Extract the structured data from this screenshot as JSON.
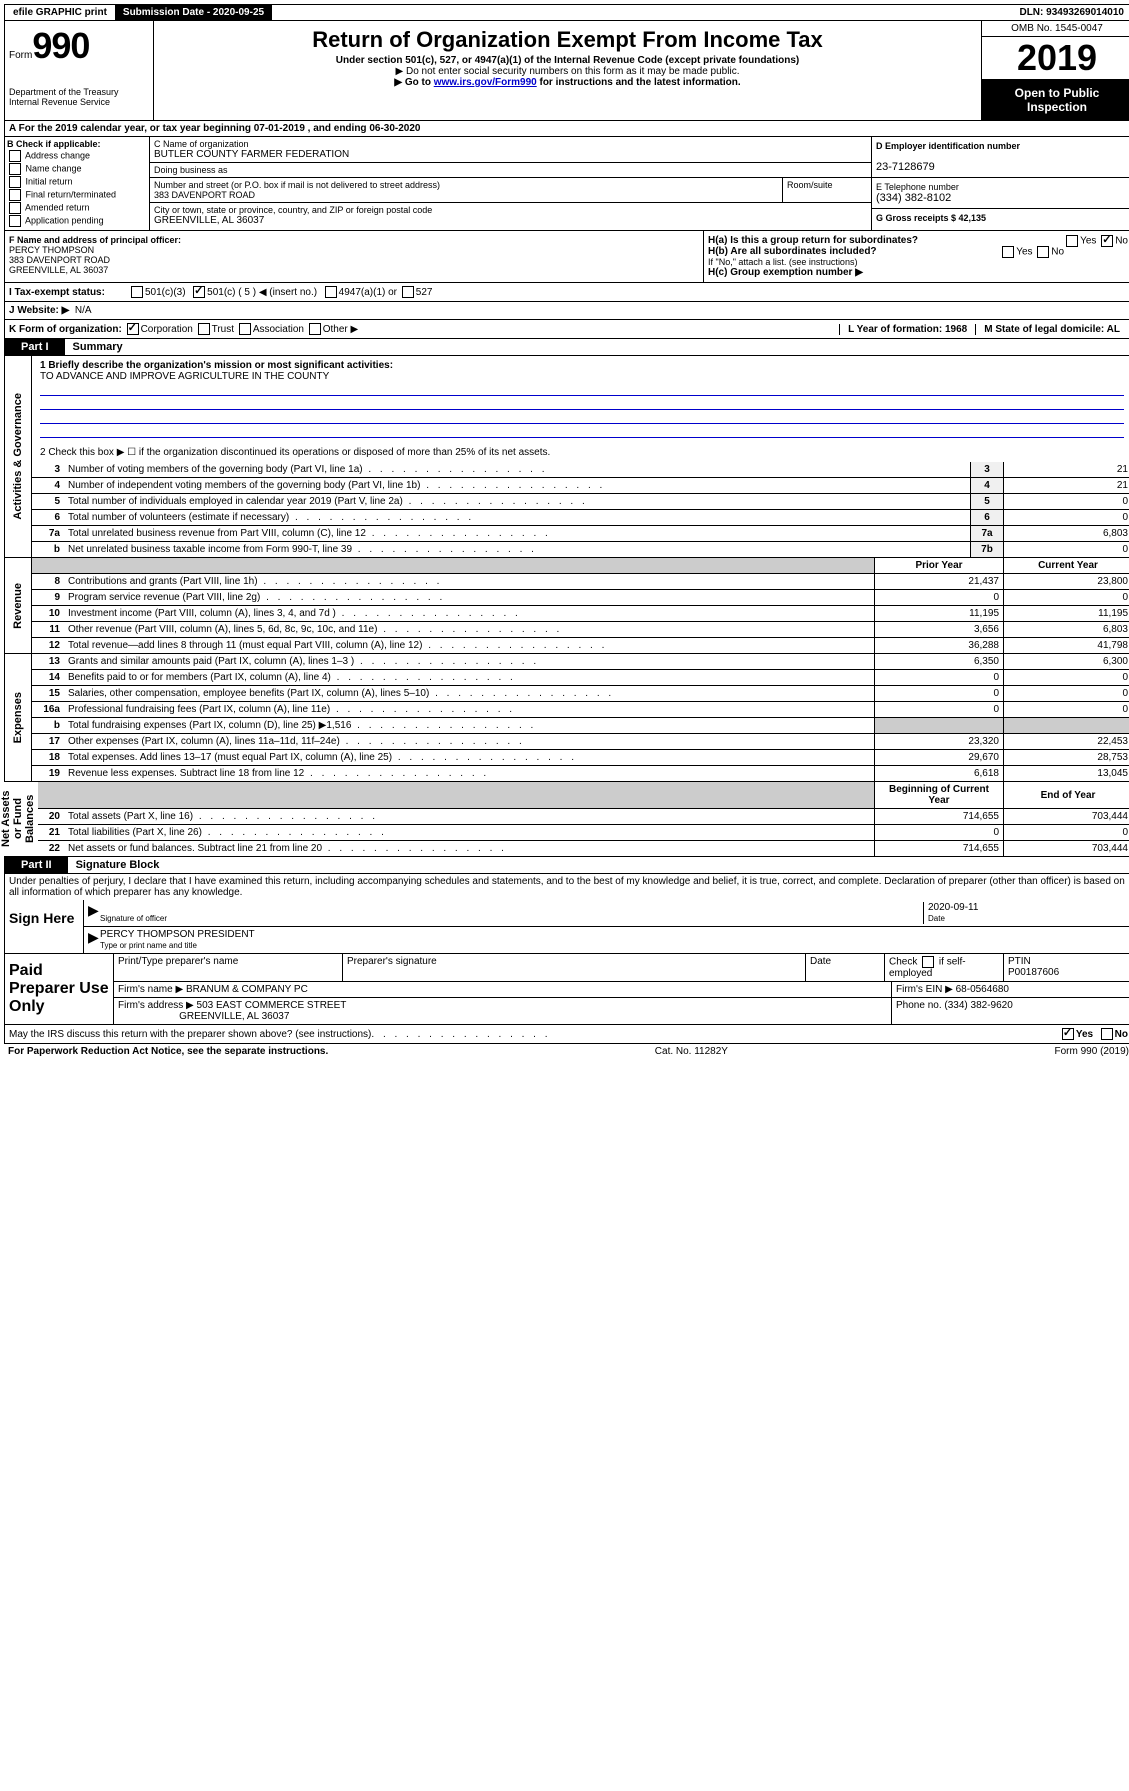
{
  "topbar": {
    "efile": "efile GRAPHIC print",
    "sub_label": "Submission Date - 2020-09-25",
    "dln": "DLN: 93493269014010"
  },
  "header": {
    "form": "Form",
    "form_num": "990",
    "title": "Return of Organization Exempt From Income Tax",
    "subtitle": "Under section 501(c), 527, or 4947(a)(1) of the Internal Revenue Code (except private foundations)",
    "note1": "▶ Do not enter social security numbers on this form as it may be made public.",
    "note2_pre": "▶ Go to ",
    "note2_link": "www.irs.gov/Form990",
    "note2_post": " for instructions and the latest information.",
    "dept": "Department of the Treasury\nInternal Revenue Service",
    "omb": "OMB No. 1545-0047",
    "year": "2019",
    "open": "Open to Public Inspection"
  },
  "rowA": "A For the 2019 calendar year, or tax year beginning 07-01-2019   , and ending 06-30-2020",
  "colB": {
    "title": "B Check if applicable:",
    "items": [
      "Address change",
      "Name change",
      "Initial return",
      "Final return/terminated",
      "Amended return",
      "Application pending"
    ]
  },
  "org": {
    "c_label": "C Name of organization",
    "name": "BUTLER COUNTY FARMER FEDERATION",
    "dba_label": "Doing business as",
    "addr_label": "Number and street (or P.O. box if mail is not delivered to street address)",
    "room_label": "Room/suite",
    "addr": "383 DAVENPORT ROAD",
    "city_label": "City or town, state or province, country, and ZIP or foreign postal code",
    "city": "GREENVILLE, AL  36037"
  },
  "right": {
    "d_label": "D Employer identification number",
    "ein": "23-7128679",
    "e_label": "E Telephone number",
    "phone": "(334) 382-8102",
    "g_label": "G Gross receipts $ 42,135"
  },
  "fg": {
    "f_label": "F  Name and address of principal officer:",
    "officer": "PERCY THOMPSON\n383 DAVENPORT ROAD\nGREENVILLE, AL  36037",
    "ha": "H(a)  Is this a group return for subordinates?",
    "hb": "H(b)  Are all subordinates included?",
    "hb_note": "If \"No,\" attach a list. (see instructions)",
    "hc": "H(c)  Group exemption number ▶",
    "yes": "Yes",
    "no": "No"
  },
  "status": {
    "i": "I  Tax-exempt status:",
    "o1": "501(c)(3)",
    "o2": "501(c) ( 5 ) ◀ (insert no.)",
    "o3": "4947(a)(1) or",
    "o4": "527"
  },
  "website": {
    "j": "J  Website: ▶",
    "val": "N/A"
  },
  "klm": {
    "k": "K Form of organization:",
    "k1": "Corporation",
    "k2": "Trust",
    "k3": "Association",
    "k4": "Other ▶",
    "l": "L Year of formation: 1968",
    "m": "M State of legal domicile: AL"
  },
  "partI": {
    "tab": "Part I",
    "title": "Summary"
  },
  "summary": {
    "q1": "1  Briefly describe the organization's mission or most significant activities:",
    "q1val": "TO ADVANCE AND IMPROVE AGRICULTURE IN THE COUNTY",
    "q2": "2  Check this box ▶ ☐  if the organization discontinued its operations or disposed of more than 25% of its net assets.",
    "lines_gov": [
      {
        "n": "3",
        "t": "Number of voting members of the governing body (Part VI, line 1a)",
        "c": "3",
        "v": "21"
      },
      {
        "n": "4",
        "t": "Number of independent voting members of the governing body (Part VI, line 1b)",
        "c": "4",
        "v": "21"
      },
      {
        "n": "5",
        "t": "Total number of individuals employed in calendar year 2019 (Part V, line 2a)",
        "c": "5",
        "v": "0"
      },
      {
        "n": "6",
        "t": "Total number of volunteers (estimate if necessary)",
        "c": "6",
        "v": "0"
      },
      {
        "n": "7a",
        "t": "Total unrelated business revenue from Part VIII, column (C), line 12",
        "c": "7a",
        "v": "6,803"
      },
      {
        "n": "b",
        "t": "Net unrelated business taxable income from Form 990-T, line 39",
        "c": "7b",
        "v": "0"
      }
    ],
    "prior": "Prior Year",
    "current": "Current Year",
    "rev": [
      {
        "n": "8",
        "t": "Contributions and grants (Part VIII, line 1h)",
        "p": "21,437",
        "c": "23,800"
      },
      {
        "n": "9",
        "t": "Program service revenue (Part VIII, line 2g)",
        "p": "0",
        "c": "0"
      },
      {
        "n": "10",
        "t": "Investment income (Part VIII, column (A), lines 3, 4, and 7d )",
        "p": "11,195",
        "c": "11,195"
      },
      {
        "n": "11",
        "t": "Other revenue (Part VIII, column (A), lines 5, 6d, 8c, 9c, 10c, and 11e)",
        "p": "3,656",
        "c": "6,803"
      },
      {
        "n": "12",
        "t": "Total revenue—add lines 8 through 11 (must equal Part VIII, column (A), line 12)",
        "p": "36,288",
        "c": "41,798"
      }
    ],
    "exp": [
      {
        "n": "13",
        "t": "Grants and similar amounts paid (Part IX, column (A), lines 1–3 )",
        "p": "6,350",
        "c": "6,300"
      },
      {
        "n": "14",
        "t": "Benefits paid to or for members (Part IX, column (A), line 4)",
        "p": "0",
        "c": "0"
      },
      {
        "n": "15",
        "t": "Salaries, other compensation, employee benefits (Part IX, column (A), lines 5–10)",
        "p": "0",
        "c": "0"
      },
      {
        "n": "16a",
        "t": "Professional fundraising fees (Part IX, column (A), line 11e)",
        "p": "0",
        "c": "0"
      },
      {
        "n": "b",
        "t": "Total fundraising expenses (Part IX, column (D), line 25) ▶1,516",
        "p": "",
        "c": "",
        "shade": true
      },
      {
        "n": "17",
        "t": "Other expenses (Part IX, column (A), lines 11a–11d, 11f–24e)",
        "p": "23,320",
        "c": "22,453"
      },
      {
        "n": "18",
        "t": "Total expenses. Add lines 13–17 (must equal Part IX, column (A), line 25)",
        "p": "29,670",
        "c": "28,753"
      },
      {
        "n": "19",
        "t": "Revenue less expenses. Subtract line 18 from line 12",
        "p": "6,618",
        "c": "13,045"
      }
    ],
    "begin": "Beginning of Current Year",
    "end": "End of Year",
    "net": [
      {
        "n": "20",
        "t": "Total assets (Part X, line 16)",
        "p": "714,655",
        "c": "703,444"
      },
      {
        "n": "21",
        "t": "Total liabilities (Part X, line 26)",
        "p": "0",
        "c": "0"
      },
      {
        "n": "22",
        "t": "Net assets or fund balances. Subtract line 21 from line 20",
        "p": "714,655",
        "c": "703,444"
      }
    ]
  },
  "sides": {
    "gov": "Activities & Governance",
    "rev": "Revenue",
    "exp": "Expenses",
    "net": "Net Assets or Fund Balances"
  },
  "partII": {
    "tab": "Part II",
    "title": "Signature Block"
  },
  "sig": {
    "decl": "Under penalties of perjury, I declare that I have examined this return, including accompanying schedules and statements, and to the best of my knowledge and belief, it is true, correct, and complete. Declaration of preparer (other than officer) is based on all information of which preparer has any knowledge.",
    "sign_here": "Sign Here",
    "sig_label": "Signature of officer",
    "date": "2020-09-11",
    "date_label": "Date",
    "name": "PERCY THOMPSON  PRESIDENT",
    "name_label": "Type or print name and title"
  },
  "paid": {
    "label": "Paid Preparer Use Only",
    "h1": "Print/Type preparer's name",
    "h2": "Preparer's signature",
    "h3": "Date",
    "h4_pre": "Check",
    "h4_post": "if self-employed",
    "h5": "PTIN",
    "ptin": "P00187606",
    "firm_label": "Firm's name    ▶",
    "firm": "BRANUM & COMPANY PC",
    "ein_label": "Firm's EIN ▶",
    "ein": "68-0564680",
    "addr_label": "Firm's address ▶",
    "addr": "503 EAST COMMERCE STREET",
    "city": "GREENVILLE, AL  36037",
    "phone_label": "Phone no.",
    "phone": "(334) 382-9620"
  },
  "discuss": {
    "q": "May the IRS discuss this return with the preparer shown above? (see instructions)",
    "yes": "Yes",
    "no": "No"
  },
  "footer": {
    "left": "For Paperwork Reduction Act Notice, see the separate instructions.",
    "mid": "Cat. No. 11282Y",
    "right": "Form 990 (2019)"
  }
}
